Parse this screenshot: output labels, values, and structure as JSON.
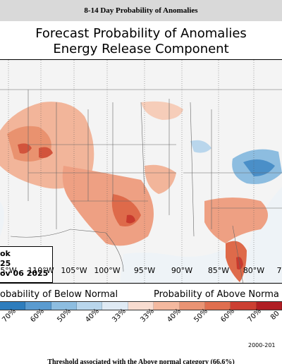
{
  "header": {
    "text": "8-14 Day Probability of Anomalies"
  },
  "figure": {
    "title_line1": "Forecast Probability of Anomalies",
    "title_line2": "Energy Release Component"
  },
  "info_box": {
    "line1": "ok",
    "line2": "25",
    "line3": "ov 06 2025"
  },
  "longitude_labels": [
    "5°W",
    "110°W",
    "105°W",
    "100°W",
    "95°W",
    "90°W",
    "85°W",
    "80°W",
    "7"
  ],
  "colorbar": {
    "below_title": "obability of Below Normal",
    "above_title": "Probability of Above Norma",
    "below_ticks": [
      "70%",
      "60%",
      "50%",
      "40%",
      "33%"
    ],
    "above_ticks": [
      "33%",
      "40%",
      "50%",
      "60%",
      "70%",
      "80"
    ],
    "below_colors": [
      "#2e7dbd",
      "#5a9bd0",
      "#8dbde0",
      "#b9d6ec",
      "#dfeaf4"
    ],
    "above_colors": [
      "#f8dcd0",
      "#f4b99f",
      "#ea9474",
      "#e06f4f",
      "#cc3f32",
      "#b01e24"
    ]
  },
  "source_text": "2000-201",
  "footer": {
    "text": "Threshold associated with the Above normal category (66.6%)"
  },
  "colors": {
    "background": "#f4f4f4",
    "above_main": "#e9926f",
    "below_main": "#4a8fc8"
  }
}
